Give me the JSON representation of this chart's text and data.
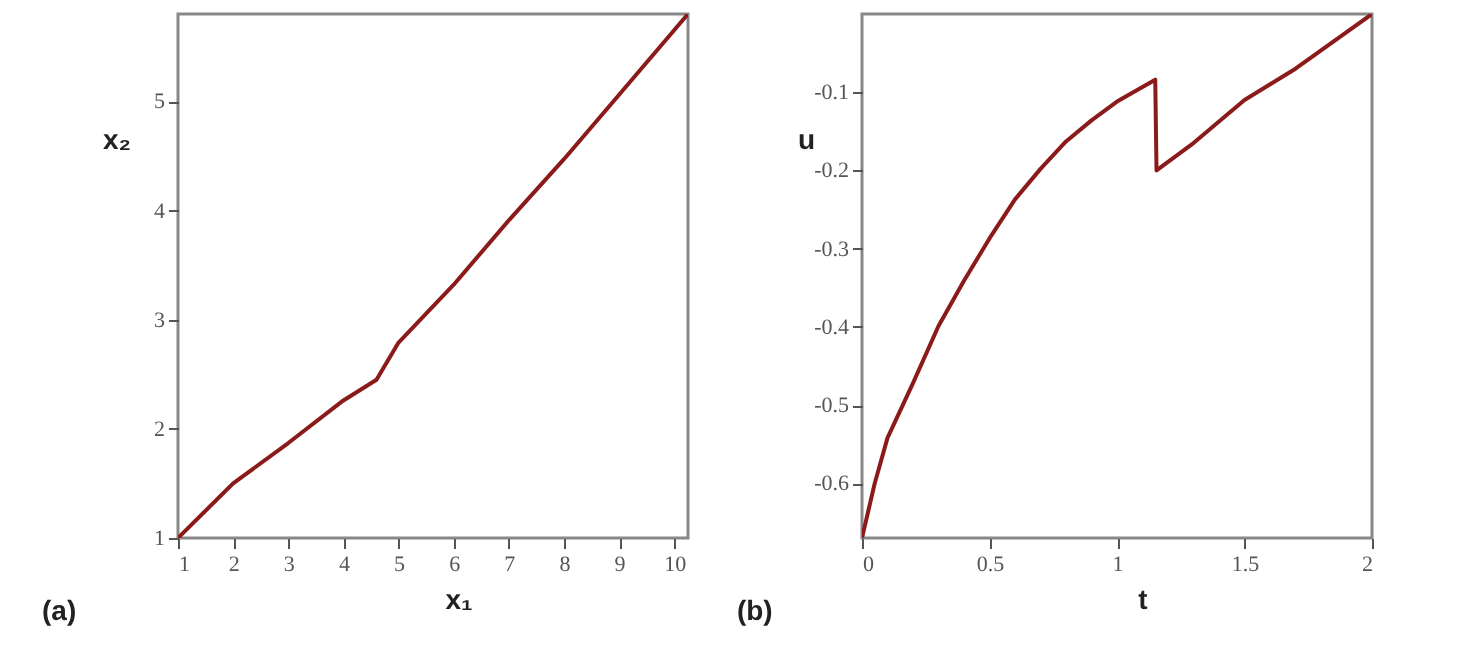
{
  "chart_data": [
    {
      "type": "line",
      "xlabel": "x₁",
      "ylabel": "x₂",
      "annotations": [
        "(a)"
      ],
      "grid": false,
      "legend": false,
      "x": [
        1,
        2,
        3,
        4,
        4.6,
        5,
        6,
        7,
        8,
        9,
        10.25
      ],
      "series": [
        {
          "color": "#8b1a1a",
          "values": [
            1,
            1.5,
            1.87,
            2.26,
            2.45,
            2.79,
            3.32,
            3.91,
            4.47,
            5.06,
            5.8
          ]
        }
      ],
      "xlim": [
        1,
        10.25
      ],
      "ylim": [
        1,
        5.8
      ],
      "xticks": [
        1,
        2,
        3,
        4,
        5,
        6,
        7,
        8,
        9,
        10
      ],
      "yticks": [
        1,
        2,
        3,
        4,
        5
      ]
    },
    {
      "type": "line",
      "xlabel": "t",
      "ylabel": "u",
      "annotations": [
        "(b)"
      ],
      "grid": false,
      "legend": false,
      "x": [
        0,
        0.05,
        0.1,
        0.2,
        0.3,
        0.4,
        0.5,
        0.6,
        0.7,
        0.8,
        0.9,
        1.0,
        1.15,
        1.155,
        1.3,
        1.5,
        1.7,
        2.0
      ],
      "series": [
        {
          "color": "#8b1a1a",
          "values": [
            -0.67,
            -0.6,
            -0.542,
            -0.472,
            -0.399,
            -0.341,
            -0.287,
            -0.237,
            -0.198,
            -0.163,
            -0.136,
            -0.112,
            -0.084,
            -0.2,
            -0.165,
            -0.11,
            -0.07,
            0
          ]
        }
      ],
      "xlim": [
        0,
        2
      ],
      "ylim": [
        -0.67,
        0
      ],
      "xticks": [
        0,
        0.5,
        1,
        1.5,
        2
      ],
      "yticks": [
        -0.6,
        -0.5,
        -0.4,
        -0.3,
        -0.2,
        -0.1
      ]
    }
  ]
}
